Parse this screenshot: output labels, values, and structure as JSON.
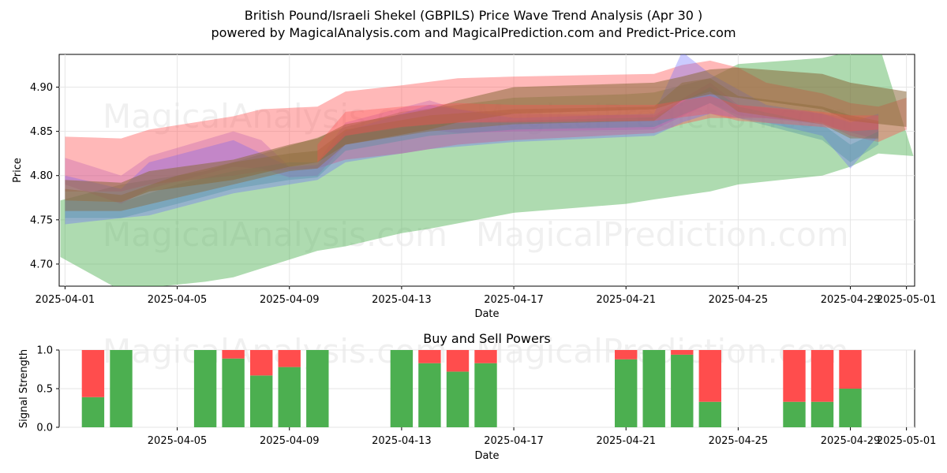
{
  "header": {
    "title": "British Pound/Israeli Shekel (GBPILS) Price Wave Trend Analysis (Apr 30 )",
    "subtitle": "powered by MagicalAnalysis.com and MagicalPrediction.com and Predict-Price.com"
  },
  "watermarks": [
    "MagicalAnalysis.com",
    "MagicalPrediction.com"
  ],
  "chart_data": [
    {
      "type": "area",
      "title": "",
      "xlabel": "Date",
      "ylabel": "Price",
      "xlim": [
        "2025-03-31T19:00",
        "2025-05-01T07:00"
      ],
      "ylim": [
        4.675,
        4.937
      ],
      "grid": true,
      "x_ticks": [
        "2025-04-01",
        "2025-04-05",
        "2025-04-09",
        "2025-04-13",
        "2025-04-17",
        "2025-04-21",
        "2025-04-25",
        "2025-04-29",
        "2025-05-01"
      ],
      "y_ticks": [
        4.7,
        4.75,
        4.8,
        4.85,
        4.9
      ],
      "colors": {
        "green": "#4caf50",
        "red": "#ff4d4d",
        "blue": "#6a6aff",
        "brown": "#8b6a3c",
        "purple": "#b04ab0",
        "teal": "#4a8fa0"
      },
      "series": [
        {
          "color": "green",
          "opacity": 0.45,
          "x": [
            "2025-03-31T20:00",
            "2025-04-03",
            "2025-04-06",
            "2025-04-07",
            "2025-04-10",
            "2025-04-11",
            "2025-04-13",
            "2025-04-14",
            "2025-04-17",
            "2025-04-21",
            "2025-04-22",
            "2025-04-24",
            "2025-04-25",
            "2025-04-28",
            "2025-04-29",
            "2025-04-30",
            "2025-05-01T06:00"
          ],
          "upper": [
            4.772,
            4.79,
            4.805,
            4.815,
            4.843,
            4.855,
            4.872,
            4.876,
            4.888,
            4.892,
            4.894,
            4.91,
            4.926,
            4.933,
            4.94,
            4.95,
            4.822
          ],
          "lower": [
            4.708,
            4.67,
            4.68,
            4.685,
            4.715,
            4.72,
            4.735,
            4.74,
            4.758,
            4.768,
            4.773,
            4.782,
            4.79,
            4.8,
            4.81,
            4.825,
            4.822
          ]
        },
        {
          "color": "red",
          "opacity": 0.4,
          "x": [
            "2025-04-01",
            "2025-04-03",
            "2025-04-04",
            "2025-04-07",
            "2025-04-08",
            "2025-04-10",
            "2025-04-11",
            "2025-04-13",
            "2025-04-15",
            "2025-04-17",
            "2025-04-22",
            "2025-04-23",
            "2025-04-24",
            "2025-04-25",
            "2025-04-26",
            "2025-04-28",
            "2025-04-29",
            "2025-04-30",
            "2025-05-01"
          ],
          "upper": [
            4.844,
            4.842,
            4.852,
            4.867,
            4.875,
            4.878,
            4.895,
            4.902,
            4.91,
            4.912,
            4.915,
            4.925,
            4.93,
            4.922,
            4.905,
            4.893,
            4.882,
            4.878,
            4.888
          ],
          "lower": [
            4.782,
            4.782,
            4.79,
            4.8,
            4.805,
            4.808,
            4.818,
            4.825,
            4.835,
            4.84,
            4.848,
            4.858,
            4.865,
            4.865,
            4.865,
            4.86,
            4.845,
            4.838,
            4.852
          ]
        },
        {
          "color": "blue",
          "opacity": 0.35,
          "x": [
            "2025-04-01",
            "2025-04-03",
            "2025-04-04",
            "2025-04-07",
            "2025-04-09",
            "2025-04-10",
            "2025-04-11",
            "2025-04-14",
            "2025-04-17",
            "2025-04-22",
            "2025-04-23",
            "2025-04-24",
            "2025-04-26",
            "2025-04-28",
            "2025-04-29",
            "2025-04-30"
          ],
          "upper": [
            4.8,
            4.785,
            4.815,
            4.84,
            4.81,
            4.812,
            4.85,
            4.88,
            4.865,
            4.87,
            4.94,
            4.915,
            4.88,
            4.87,
            4.86,
            4.87
          ],
          "lower": [
            4.745,
            4.752,
            4.755,
            4.78,
            4.79,
            4.795,
            4.815,
            4.83,
            4.838,
            4.845,
            4.86,
            4.87,
            4.86,
            4.845,
            4.808,
            4.845
          ]
        },
        {
          "color": "purple",
          "opacity": 0.28,
          "x": [
            "2025-04-01",
            "2025-04-03",
            "2025-04-04",
            "2025-04-07",
            "2025-04-08",
            "2025-04-09",
            "2025-04-10",
            "2025-04-11",
            "2025-04-14",
            "2025-04-15",
            "2025-04-17",
            "2025-04-22",
            "2025-04-24",
            "2025-04-25",
            "2025-04-28",
            "2025-04-30"
          ],
          "upper": [
            4.82,
            4.8,
            4.822,
            4.85,
            4.84,
            4.81,
            4.815,
            4.86,
            4.885,
            4.875,
            4.87,
            4.868,
            4.905,
            4.88,
            4.87,
            4.86
          ],
          "lower": [
            4.79,
            4.768,
            4.785,
            4.81,
            4.808,
            4.798,
            4.8,
            4.835,
            4.852,
            4.848,
            4.85,
            4.852,
            4.882,
            4.868,
            4.858,
            4.84
          ]
        },
        {
          "color": "teal",
          "opacity": 0.35,
          "x": [
            "2025-04-01",
            "2025-04-03",
            "2025-04-05",
            "2025-04-07",
            "2025-04-09",
            "2025-04-10",
            "2025-04-11",
            "2025-04-14",
            "2025-04-17",
            "2025-04-22",
            "2025-04-24",
            "2025-04-25",
            "2025-04-28",
            "2025-04-29",
            "2025-04-30"
          ],
          "upper": [
            4.772,
            4.77,
            4.79,
            4.805,
            4.815,
            4.815,
            4.845,
            4.858,
            4.862,
            4.866,
            4.9,
            4.878,
            4.858,
            4.835,
            4.85
          ],
          "lower": [
            4.752,
            4.752,
            4.768,
            4.785,
            4.795,
            4.798,
            4.828,
            4.845,
            4.852,
            4.855,
            4.882,
            4.865,
            4.84,
            4.815,
            4.835
          ]
        },
        {
          "color": "brown",
          "opacity": 0.55,
          "x": [
            "2025-04-01",
            "2025-04-03",
            "2025-04-04",
            "2025-04-07",
            "2025-04-09",
            "2025-04-10",
            "2025-04-11",
            "2025-04-14",
            "2025-04-15",
            "2025-04-17",
            "2025-04-22",
            "2025-04-23",
            "2025-04-24",
            "2025-04-25",
            "2025-04-28",
            "2025-04-29",
            "2025-05-01"
          ],
          "upper": [
            4.795,
            4.792,
            4.805,
            4.818,
            4.835,
            4.842,
            4.858,
            4.875,
            4.885,
            4.9,
            4.905,
            4.912,
            4.92,
            4.922,
            4.915,
            4.905,
            4.895
          ],
          "lower": [
            4.772,
            4.77,
            4.782,
            4.795,
            4.81,
            4.815,
            4.835,
            4.852,
            4.86,
            4.87,
            4.875,
            4.885,
            4.892,
            4.888,
            4.875,
            4.862,
            4.855
          ]
        },
        {
          "color": "brown",
          "opacity": 0.45,
          "x": [
            "2025-04-01",
            "2025-04-03",
            "2025-04-05",
            "2025-04-07",
            "2025-04-09",
            "2025-04-10",
            "2025-04-11",
            "2025-04-14",
            "2025-04-17",
            "2025-04-22",
            "2025-04-23",
            "2025-04-24",
            "2025-04-25",
            "2025-04-28",
            "2025-04-29",
            "2025-04-30"
          ],
          "upper": [
            4.785,
            4.778,
            4.8,
            4.815,
            4.825,
            4.828,
            4.852,
            4.868,
            4.875,
            4.878,
            4.905,
            4.91,
            4.89,
            4.878,
            4.868,
            4.862
          ],
          "lower": [
            4.76,
            4.76,
            4.775,
            4.79,
            4.805,
            4.808,
            4.835,
            4.85,
            4.858,
            4.862,
            4.885,
            4.895,
            4.872,
            4.858,
            4.842,
            4.842
          ]
        },
        {
          "color": "red",
          "opacity": 0.35,
          "x": [
            "2025-04-10",
            "2025-04-11",
            "2025-04-13",
            "2025-04-15",
            "2025-04-17",
            "2025-04-22",
            "2025-04-24",
            "2025-04-25",
            "2025-04-28",
            "2025-04-29",
            "2025-04-30"
          ],
          "upper": [
            4.835,
            4.872,
            4.878,
            4.882,
            4.88,
            4.88,
            4.89,
            4.88,
            4.872,
            4.868,
            4.868
          ],
          "lower": [
            4.815,
            4.845,
            4.855,
            4.86,
            4.86,
            4.862,
            4.87,
            4.862,
            4.855,
            4.85,
            4.852
          ]
        }
      ]
    },
    {
      "type": "bar",
      "title": "Buy and Sell Powers",
      "xlabel": "Date",
      "ylabel": "Signal Strength",
      "ylim": [
        0,
        1
      ],
      "grid": true,
      "y_ticks": [
        "0.0",
        "0.5",
        "1.0"
      ],
      "x_ticks": [
        "2025-04-05",
        "2025-04-09",
        "2025-04-13",
        "2025-04-17",
        "2025-04-21",
        "2025-04-25",
        "2025-04-29",
        "2025-05-01"
      ],
      "xlim": [
        "2025-03-31T19:00",
        "2025-05-01T07:00"
      ],
      "colors": {
        "buy": "#4caf50",
        "sell": "#ff4d4d"
      },
      "dates": [
        "2025-04-02",
        "2025-04-03",
        "2025-04-06",
        "2025-04-07",
        "2025-04-08",
        "2025-04-09",
        "2025-04-10",
        "2025-04-13",
        "2025-04-14",
        "2025-04-15",
        "2025-04-16",
        "2025-04-21",
        "2025-04-22",
        "2025-04-23",
        "2025-04-24",
        "2025-04-27",
        "2025-04-28",
        "2025-04-29"
      ],
      "series": [
        {
          "key": "buy",
          "values": [
            0.39,
            1.0,
            1.0,
            0.89,
            0.67,
            0.78,
            1.0,
            1.0,
            0.83,
            0.72,
            0.83,
            0.88,
            1.0,
            0.94,
            0.33,
            0.33,
            0.33,
            0.5
          ]
        },
        {
          "key": "sell",
          "values": [
            0.61,
            0.0,
            0.0,
            0.11,
            0.33,
            0.22,
            0.0,
            0.0,
            0.17,
            0.28,
            0.17,
            0.12,
            0.0,
            0.06,
            0.67,
            0.67,
            0.67,
            0.5
          ]
        }
      ]
    }
  ]
}
